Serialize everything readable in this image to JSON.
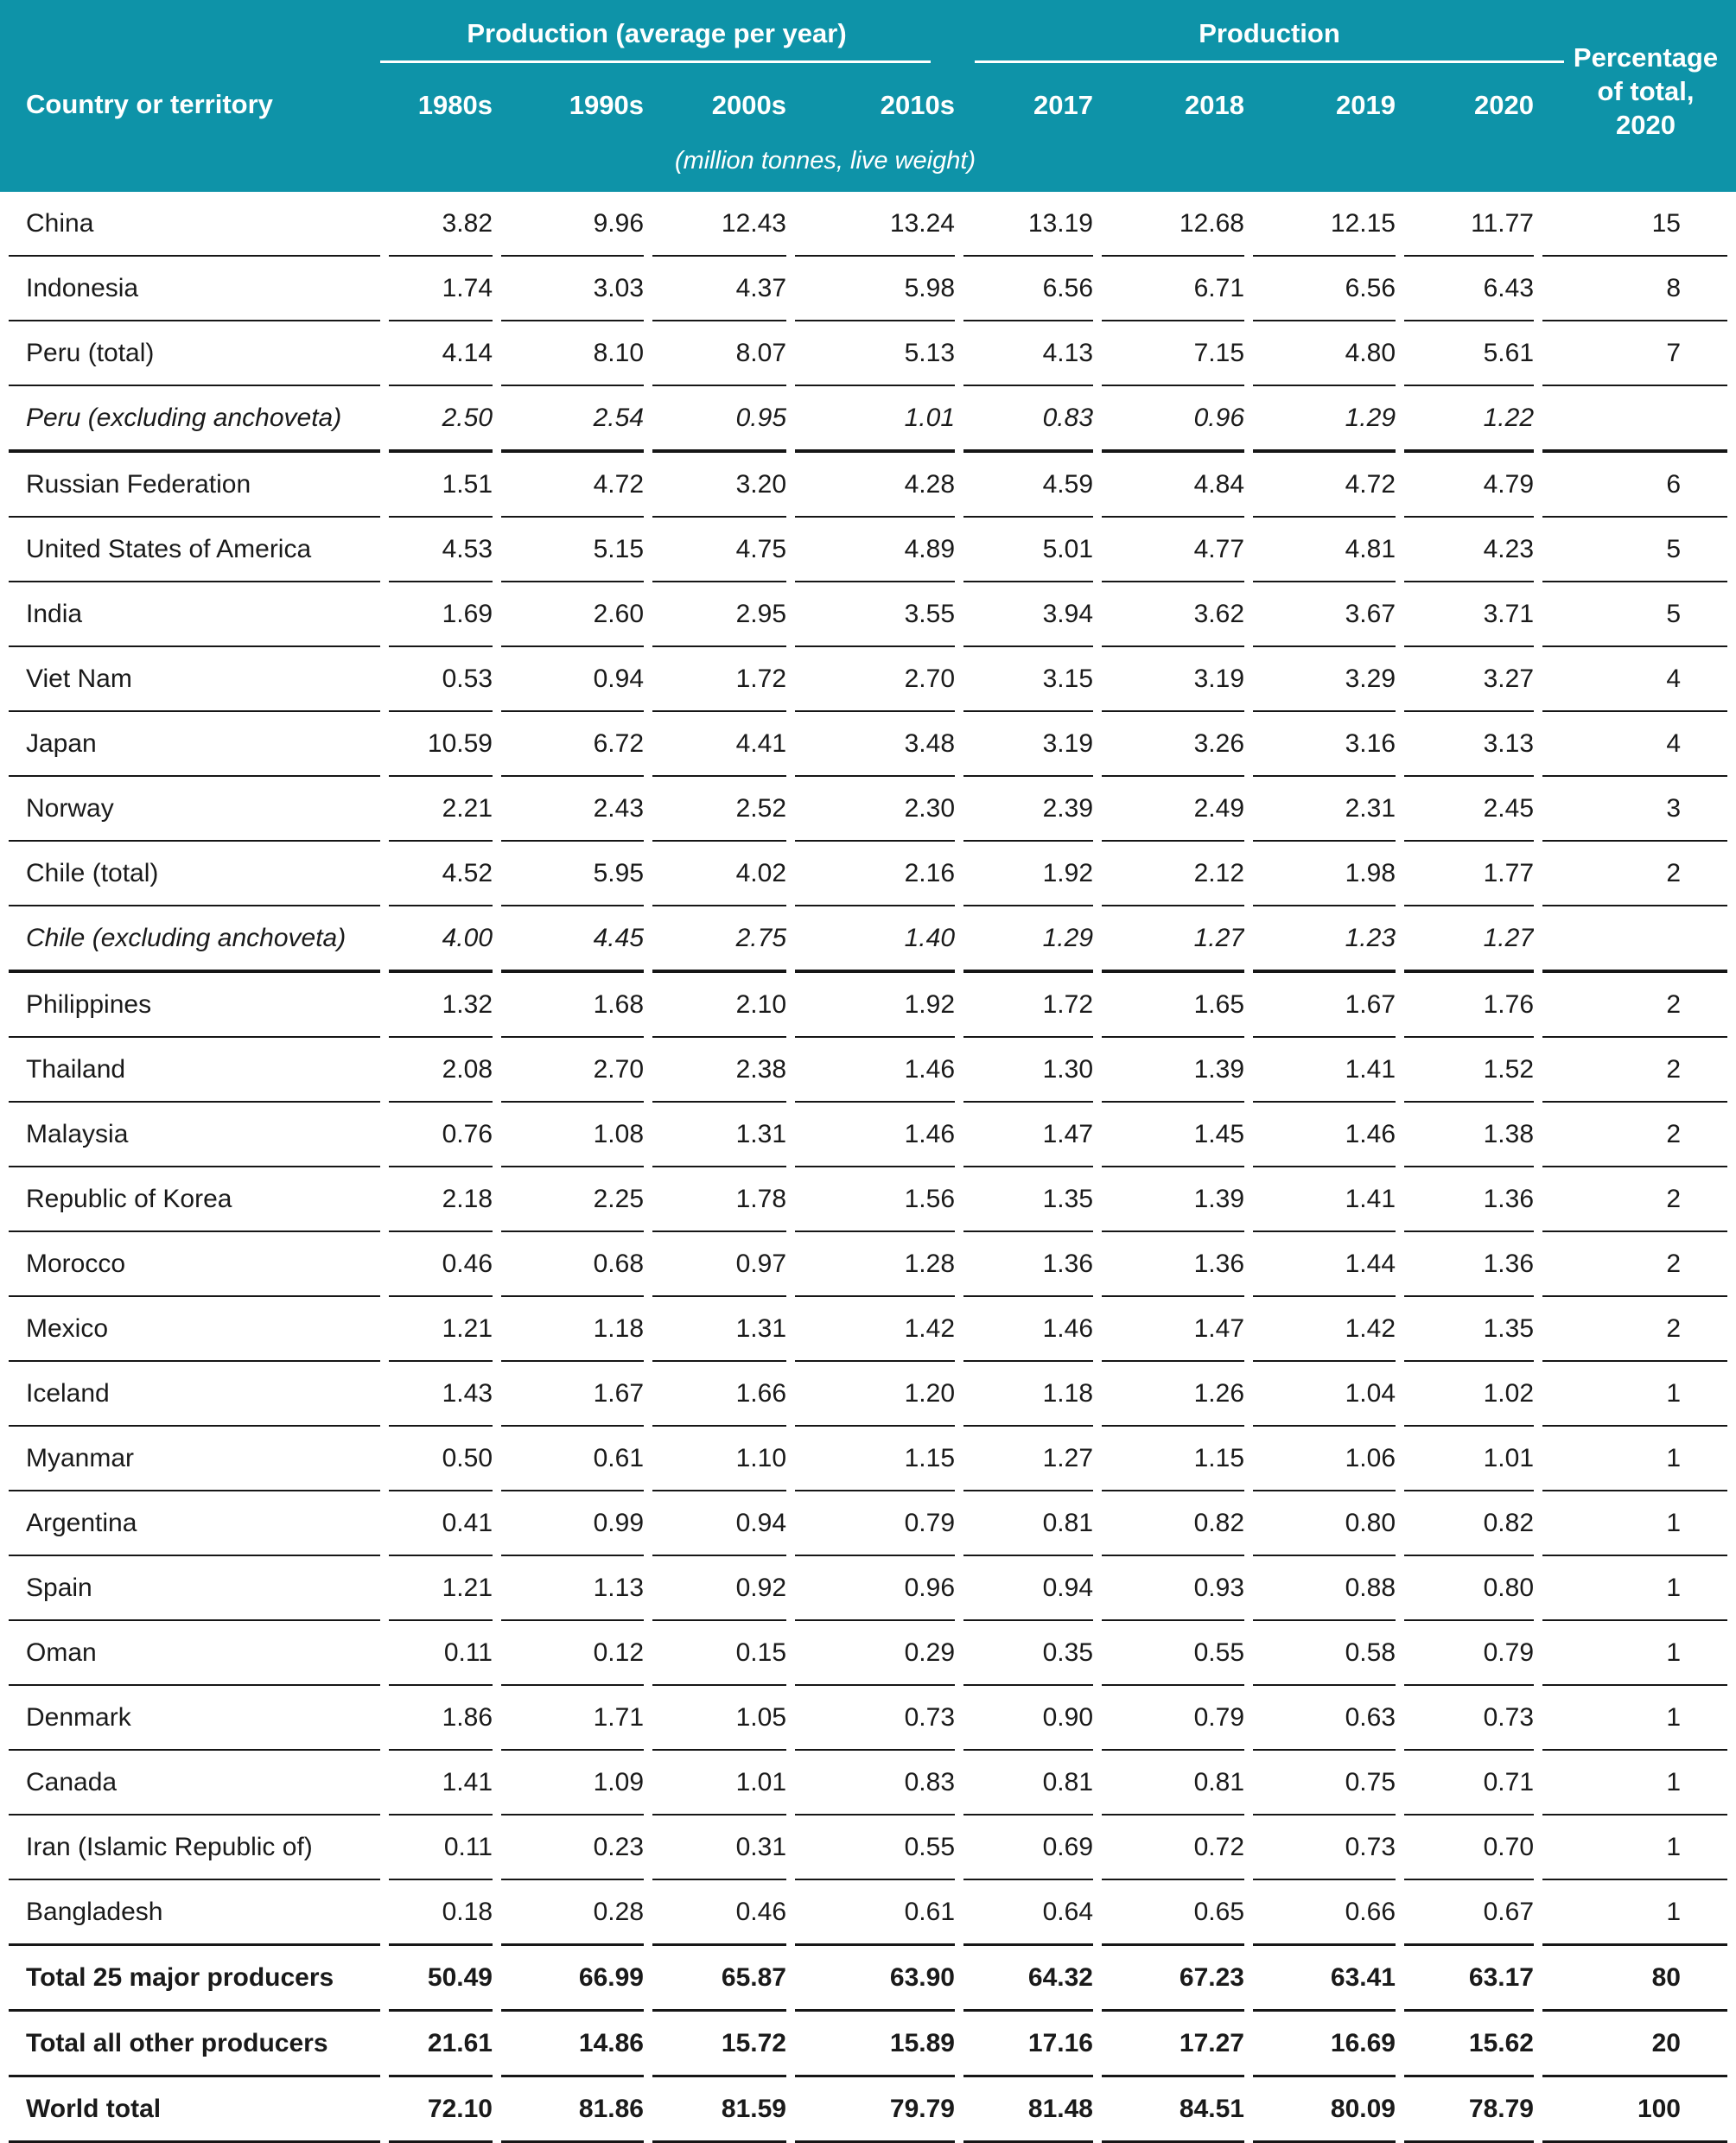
{
  "colors": {
    "header_bg": "#0e93a8",
    "header_text": "#ffffff",
    "body_text": "#1a1a1a",
    "row_line": "#161616"
  },
  "table": {
    "header": {
      "country_col": "Country or territory",
      "group1": "Production (average per year)",
      "group2": "Production",
      "subcols_group1": [
        "1980s",
        "1990s",
        "2000s",
        "2010s"
      ],
      "subcols_group2": [
        "2017",
        "2018",
        "2019",
        "2020"
      ],
      "pct_col": "Percentage\nof total,\n2020",
      "unit_note": "(million tonnes, live weight)"
    },
    "rows": [
      {
        "name": "China",
        "style": "normal",
        "rule": "n",
        "values": [
          "3.82",
          "9.96",
          "12.43",
          "13.24",
          "13.19",
          "12.68",
          "12.15",
          "11.77",
          "15"
        ]
      },
      {
        "name": "Indonesia",
        "style": "normal",
        "rule": "n",
        "values": [
          "1.74",
          "3.03",
          "4.37",
          "5.98",
          "6.56",
          "6.71",
          "6.56",
          "6.43",
          "8"
        ]
      },
      {
        "name": "Peru (total)",
        "style": "normal",
        "rule": "n",
        "values": [
          "4.14",
          "8.10",
          "8.07",
          "5.13",
          "4.13",
          "7.15",
          "4.80",
          "5.61",
          "7"
        ]
      },
      {
        "name": "Peru (excluding anchoveta)",
        "style": "italic",
        "rule": "t",
        "values": [
          "2.50",
          "2.54",
          "0.95",
          "1.01",
          "0.83",
          "0.96",
          "1.29",
          "1.22",
          ""
        ]
      },
      {
        "name": "Russian Federation",
        "style": "normal",
        "rule": "n",
        "values": [
          "1.51",
          "4.72",
          "3.20",
          "4.28",
          "4.59",
          "4.84",
          "4.72",
          "4.79",
          "6"
        ]
      },
      {
        "name": "United States of America",
        "style": "normal",
        "rule": "n",
        "values": [
          "4.53",
          "5.15",
          "4.75",
          "4.89",
          "5.01",
          "4.77",
          "4.81",
          "4.23",
          "5"
        ]
      },
      {
        "name": "India",
        "style": "normal",
        "rule": "n",
        "values": [
          "1.69",
          "2.60",
          "2.95",
          "3.55",
          "3.94",
          "3.62",
          "3.67",
          "3.71",
          "5"
        ]
      },
      {
        "name": "Viet Nam",
        "style": "normal",
        "rule": "n",
        "values": [
          "0.53",
          "0.94",
          "1.72",
          "2.70",
          "3.15",
          "3.19",
          "3.29",
          "3.27",
          "4"
        ]
      },
      {
        "name": "Japan",
        "style": "normal",
        "rule": "n",
        "values": [
          "10.59",
          "6.72",
          "4.41",
          "3.48",
          "3.19",
          "3.26",
          "3.16",
          "3.13",
          "4"
        ]
      },
      {
        "name": "Norway",
        "style": "normal",
        "rule": "n",
        "values": [
          "2.21",
          "2.43",
          "2.52",
          "2.30",
          "2.39",
          "2.49",
          "2.31",
          "2.45",
          "3"
        ]
      },
      {
        "name": "Chile (total)",
        "style": "normal",
        "rule": "n",
        "values": [
          "4.52",
          "5.95",
          "4.02",
          "2.16",
          "1.92",
          "2.12",
          "1.98",
          "1.77",
          "2"
        ]
      },
      {
        "name": "Chile (excluding anchoveta)",
        "style": "italic",
        "rule": "t",
        "values": [
          "4.00",
          "4.45",
          "2.75",
          "1.40",
          "1.29",
          "1.27",
          "1.23",
          "1.27",
          ""
        ]
      },
      {
        "name": "Philippines",
        "style": "normal",
        "rule": "n",
        "values": [
          "1.32",
          "1.68",
          "2.10",
          "1.92",
          "1.72",
          "1.65",
          "1.67",
          "1.76",
          "2"
        ]
      },
      {
        "name": "Thailand",
        "style": "normal",
        "rule": "n",
        "values": [
          "2.08",
          "2.70",
          "2.38",
          "1.46",
          "1.30",
          "1.39",
          "1.41",
          "1.52",
          "2"
        ]
      },
      {
        "name": "Malaysia",
        "style": "normal",
        "rule": "n",
        "values": [
          "0.76",
          "1.08",
          "1.31",
          "1.46",
          "1.47",
          "1.45",
          "1.46",
          "1.38",
          "2"
        ]
      },
      {
        "name": "Republic of Korea",
        "style": "normal",
        "rule": "n",
        "values": [
          "2.18",
          "2.25",
          "1.78",
          "1.56",
          "1.35",
          "1.39",
          "1.41",
          "1.36",
          "2"
        ]
      },
      {
        "name": "Morocco",
        "style": "normal",
        "rule": "n",
        "values": [
          "0.46",
          "0.68",
          "0.97",
          "1.28",
          "1.36",
          "1.36",
          "1.44",
          "1.36",
          "2"
        ]
      },
      {
        "name": "Mexico",
        "style": "normal",
        "rule": "n",
        "values": [
          "1.21",
          "1.18",
          "1.31",
          "1.42",
          "1.46",
          "1.47",
          "1.42",
          "1.35",
          "2"
        ]
      },
      {
        "name": "Iceland",
        "style": "normal",
        "rule": "n",
        "values": [
          "1.43",
          "1.67",
          "1.66",
          "1.20",
          "1.18",
          "1.26",
          "1.04",
          "1.02",
          "1"
        ]
      },
      {
        "name": "Myanmar",
        "style": "normal",
        "rule": "n",
        "values": [
          "0.50",
          "0.61",
          "1.10",
          "1.15",
          "1.27",
          "1.15",
          "1.06",
          "1.01",
          "1"
        ]
      },
      {
        "name": "Argentina",
        "style": "normal",
        "rule": "n",
        "values": [
          "0.41",
          "0.99",
          "0.94",
          "0.79",
          "0.81",
          "0.82",
          "0.80",
          "0.82",
          "1"
        ]
      },
      {
        "name": "Spain",
        "style": "normal",
        "rule": "n",
        "values": [
          "1.21",
          "1.13",
          "0.92",
          "0.96",
          "0.94",
          "0.93",
          "0.88",
          "0.80",
          "1"
        ]
      },
      {
        "name": "Oman",
        "style": "normal",
        "rule": "n",
        "values": [
          "0.11",
          "0.12",
          "0.15",
          "0.29",
          "0.35",
          "0.55",
          "0.58",
          "0.79",
          "1"
        ]
      },
      {
        "name": "Denmark",
        "style": "normal",
        "rule": "n",
        "values": [
          "1.86",
          "1.71",
          "1.05",
          "0.73",
          "0.90",
          "0.79",
          "0.63",
          "0.73",
          "1"
        ]
      },
      {
        "name": "Canada",
        "style": "normal",
        "rule": "n",
        "values": [
          "1.41",
          "1.09",
          "1.01",
          "0.83",
          "0.81",
          "0.81",
          "0.75",
          "0.71",
          "1"
        ]
      },
      {
        "name": "Iran (Islamic Republic of)",
        "style": "normal",
        "rule": "n",
        "values": [
          "0.11",
          "0.23",
          "0.31",
          "0.55",
          "0.69",
          "0.72",
          "0.73",
          "0.70",
          "1"
        ]
      },
      {
        "name": "Bangladesh",
        "style": "normal",
        "rule": "s",
        "values": [
          "0.18",
          "0.28",
          "0.46",
          "0.61",
          "0.64",
          "0.65",
          "0.66",
          "0.67",
          "1"
        ]
      },
      {
        "name": "Total 25 major producers",
        "style": "bold",
        "rule": "s",
        "values": [
          "50.49",
          "66.99",
          "65.87",
          "63.90",
          "64.32",
          "67.23",
          "63.41",
          "63.17",
          "80"
        ]
      },
      {
        "name": "Total all other producers",
        "style": "bold",
        "rule": "s",
        "values": [
          "21.61",
          "14.86",
          "15.72",
          "15.89",
          "17.16",
          "17.27",
          "16.69",
          "15.62",
          "20"
        ]
      },
      {
        "name": "World total",
        "style": "bold",
        "rule": "s",
        "values": [
          "72.10",
          "81.86",
          "81.59",
          "79.79",
          "81.48",
          "84.51",
          "80.09",
          "78.79",
          "100"
        ]
      }
    ]
  }
}
